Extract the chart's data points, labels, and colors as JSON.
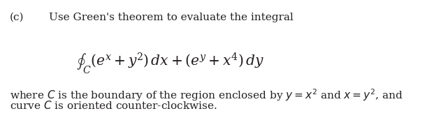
{
  "label_c": "(c)",
  "line1": "Use Green's theorem to evaluate the integral",
  "integral_expr": "$\\oint_{C} (e^x + y^2)\\,dx + (e^y + x^4)\\,dy$",
  "line3": "where $C$ is the boundary of the region enclosed by $y = x^2$ and $x = y^2$, and",
  "line4": "curve $C$ is oriented counter-clockwise.",
  "bg_color": "#ffffff",
  "text_color": "#231f20",
  "font_size_main": 11.0,
  "font_size_integral": 14.5,
  "fig_width": 6.08,
  "fig_height": 1.89,
  "dpi": 100
}
